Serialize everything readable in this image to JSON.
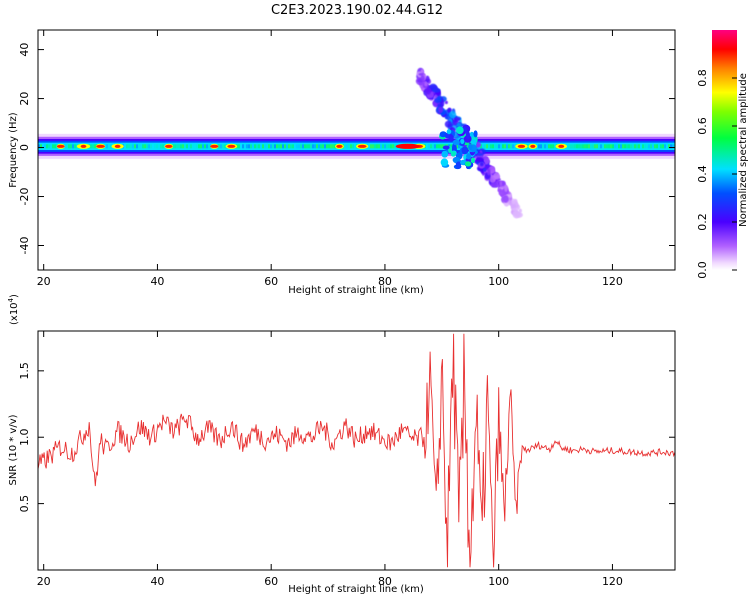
{
  "title": "C2E3.2023.190.02.44.G12",
  "colors": {
    "snr_line": "#e83030",
    "axes": "#000000",
    "background": "#ffffff"
  },
  "chart_data": [
    {
      "type": "heatmap",
      "title": "C2E3.2023.190.02.44.G12",
      "xlabel": "Height of straight line (km)",
      "ylabel": "Frequency (Hz)",
      "xlim": [
        19,
        131
      ],
      "ylim": [
        -50,
        48
      ],
      "xticks": [
        20,
        40,
        60,
        80,
        100,
        120
      ],
      "yticks": [
        -40,
        -20,
        0,
        20,
        40
      ],
      "xtick_labels": [
        "20",
        "40",
        "60",
        "80",
        "100",
        "120"
      ],
      "ytick_labels": [
        "-40",
        "-20",
        "0",
        "20",
        "40"
      ],
      "colorbar": {
        "label": "Normalized spectral amplitude",
        "range": [
          0,
          1
        ],
        "ticks": [
          0.0,
          0.2,
          0.4,
          0.6,
          0.8
        ],
        "tick_labels": [
          "0.0",
          "0.2",
          "0.4",
          "0.6",
          "0.8"
        ],
        "colormap": "rainbow (white-violet-blue-cyan-green-yellow-red-magenta)"
      },
      "band": {
        "center_hz": 0.5,
        "half_width_hz": 3,
        "x_from": 19,
        "x_to": 131,
        "typical_amplitude": 0.4,
        "peak_heights_km": [
          23,
          27,
          30,
          33,
          42,
          50,
          53,
          72,
          76,
          84,
          86,
          104,
          106,
          111
        ]
      },
      "disturbance": {
        "x_from": 86,
        "x_to": 104,
        "freq_from_hz": 30,
        "freq_to_hz": -28,
        "peak_amplitude": 0.45
      }
    },
    {
      "type": "line",
      "xlabel": "Height of straight line (km)",
      "ylabel": "SNR (10 * v/v)",
      "y_multiplier_label": "(x10",
      "y_multiplier_exponent": "4",
      "y_multiplier_suffix": ")",
      "xlim": [
        19,
        131
      ],
      "ylim": [
        0,
        1.8
      ],
      "xticks": [
        20,
        40,
        60,
        80,
        100,
        120
      ],
      "yticks": [
        0.5,
        1.0,
        1.5
      ],
      "xtick_labels": [
        "20",
        "40",
        "60",
        "80",
        "100",
        "120"
      ],
      "ytick_labels": [
        "0.5",
        "1.0",
        "1.5"
      ],
      "series": [
        {
          "color": "#e83030",
          "x": [
            19,
            21,
            23,
            25,
            27,
            28,
            29,
            30,
            31,
            33,
            35,
            37,
            39,
            41,
            43,
            45,
            47,
            49,
            51,
            53,
            55,
            57,
            59,
            61,
            63,
            65,
            67,
            69,
            71,
            73,
            75,
            77,
            79,
            81,
            83,
            85,
            87,
            88,
            89,
            90,
            91,
            92,
            93,
            94,
            95,
            96,
            97,
            98,
            99,
            100,
            101,
            102,
            103,
            104,
            105,
            107,
            109,
            110,
            111,
            113,
            115,
            117,
            120,
            123,
            126,
            129,
            131
          ],
          "y": [
            0.78,
            0.85,
            0.93,
            0.88,
            1.02,
            1.1,
            0.62,
            0.98,
            0.9,
            1.05,
            0.96,
            1.08,
            1.0,
            1.12,
            1.04,
            1.15,
            0.99,
            1.06,
            0.97,
            1.1,
            0.94,
            1.05,
            0.98,
            1.02,
            0.96,
            1.04,
            0.99,
            1.08,
            0.95,
            1.1,
            0.97,
            1.06,
            1.0,
            0.95,
            1.05,
            0.98,
            1.0,
            1.45,
            0.3,
            1.55,
            0.1,
            1.75,
            0.2,
            1.4,
            0.08,
            1.2,
            0.15,
            1.3,
            0.03,
            1.15,
            0.35,
            1.35,
            0.4,
            0.92,
            0.9,
            0.94,
            0.91,
            0.98,
            0.92,
            0.9,
            0.91,
            0.89,
            0.9,
            0.89,
            0.88,
            0.89,
            0.88
          ]
        }
      ]
    }
  ]
}
